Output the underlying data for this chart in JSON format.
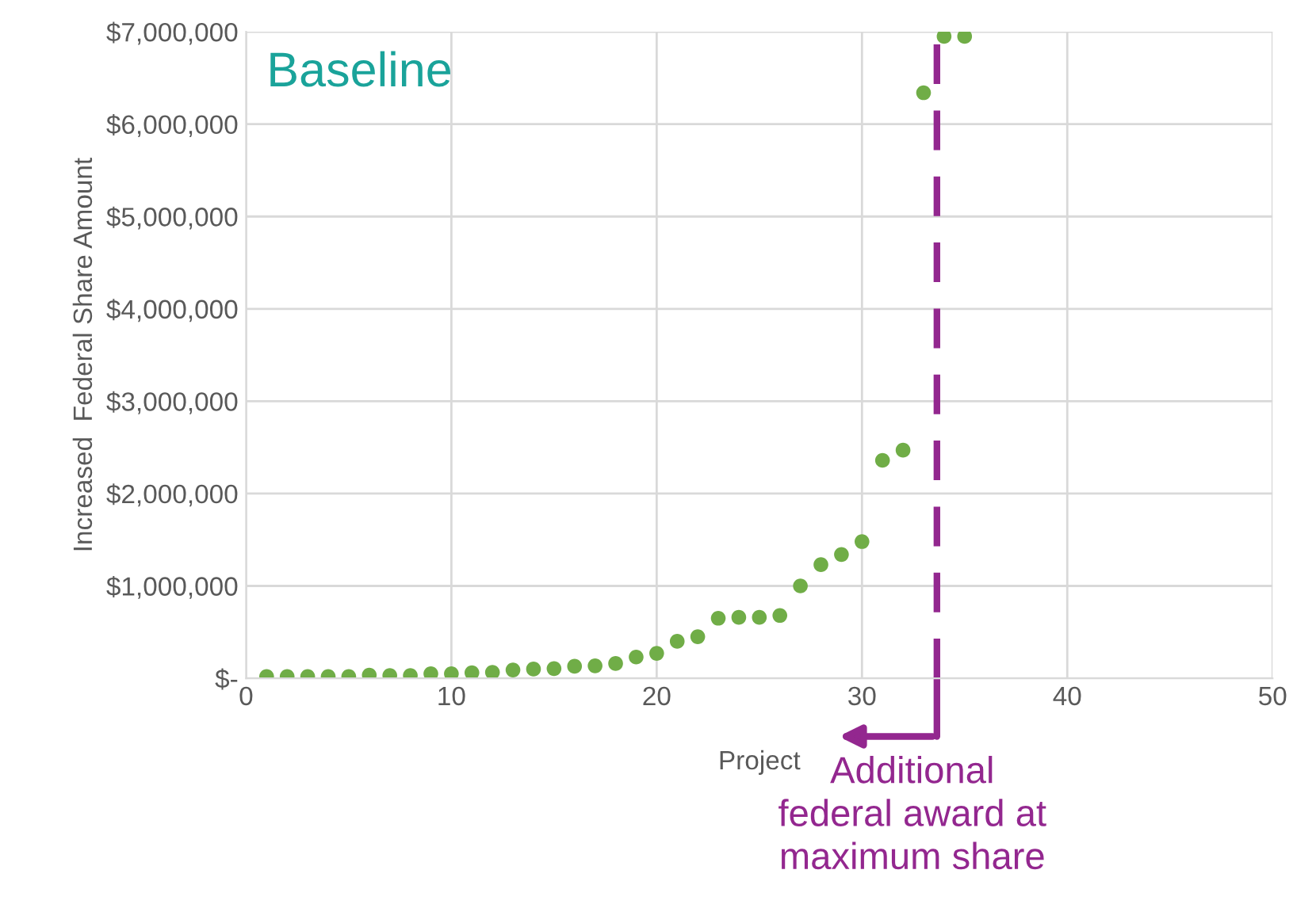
{
  "chart_data": {
    "type": "scatter",
    "title": "Baseline",
    "xlabel": "Project",
    "ylabel": "Increased  Federal Share Amount",
    "x": [
      1,
      2,
      3,
      4,
      5,
      6,
      7,
      8,
      9,
      10,
      11,
      12,
      13,
      14,
      15,
      16,
      17,
      18,
      19,
      20,
      21,
      22,
      23,
      24,
      25,
      26,
      27,
      28,
      29,
      30,
      31,
      32,
      33,
      34,
      35
    ],
    "series": [
      {
        "color": "#70ad47",
        "values": [
          20000,
          20000,
          20000,
          20000,
          20000,
          35000,
          30000,
          30000,
          50000,
          50000,
          60000,
          65000,
          90000,
          100000,
          105000,
          130000,
          135000,
          160000,
          230000,
          270000,
          400000,
          450000,
          650000,
          660000,
          660000,
          680000,
          1000000,
          1230000,
          1340000,
          1480000,
          2360000,
          2470000,
          6340000,
          6950000,
          6950000
        ]
      }
    ],
    "xlim": [
      0,
      50
    ],
    "xticks": [
      0,
      10,
      20,
      30,
      40,
      50
    ],
    "ylim": [
      0,
      7000000
    ],
    "yticks": [
      {
        "value": 0,
        "label": "$-"
      },
      {
        "value": 1000000,
        "label": "$1,000,000"
      },
      {
        "value": 2000000,
        "label": "$2,000,000"
      },
      {
        "value": 3000000,
        "label": "$3,000,000"
      },
      {
        "value": 4000000,
        "label": "$4,000,000"
      },
      {
        "value": 5000000,
        "label": "$5,000,000"
      },
      {
        "value": 6000000,
        "label": "$6,000,000"
      },
      {
        "value": 7000000,
        "label": "$7,000,000"
      }
    ],
    "ref_lines": [
      {
        "axis": "x",
        "value": 33.65,
        "label": "Additional\nfederal award at\nmaximum share",
        "color": "#93278f",
        "line_style": "dashed"
      }
    ],
    "grid": true,
    "marker": "circle",
    "legend": false
  }
}
